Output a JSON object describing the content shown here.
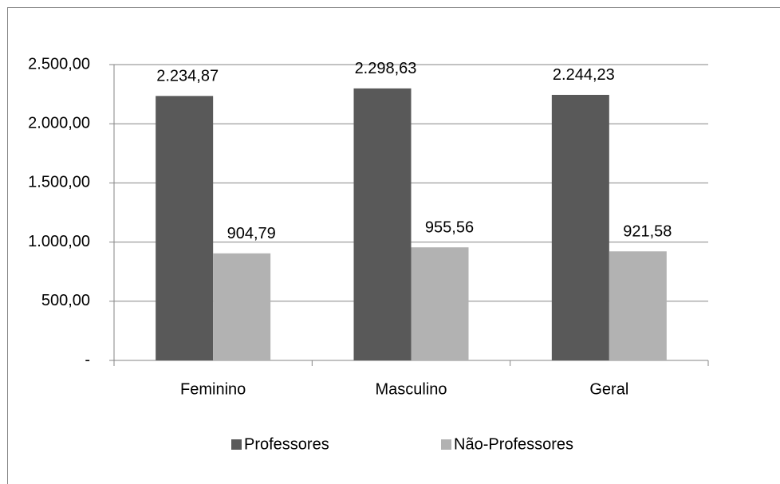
{
  "chart_data": {
    "type": "bar",
    "categories": [
      "Feminino",
      "Masculino",
      "Geral"
    ],
    "series": [
      {
        "name": "Professores",
        "color": "#595959",
        "values": [
          2234.87,
          2298.63,
          2244.23
        ],
        "value_labels": [
          "2.234,87",
          "2.298,63",
          "2.244,23"
        ]
      },
      {
        "name": "Não-Professores",
        "color": "#b2b2b2",
        "values": [
          904.79,
          955.56,
          921.58
        ],
        "value_labels": [
          "904,79",
          "955,56",
          "921,58"
        ]
      }
    ],
    "ylim": [
      0,
      2500
    ],
    "yticks": [
      {
        "value": 0,
        "label": "-"
      },
      {
        "value": 500,
        "label": "500,00"
      },
      {
        "value": 1000,
        "label": "1.000,00"
      },
      {
        "value": 1500,
        "label": "1.500,00"
      },
      {
        "value": 2000,
        "label": "2.000,00"
      },
      {
        "value": 2500,
        "label": "2.500,00"
      }
    ],
    "grid": true,
    "legend": "bottom"
  }
}
